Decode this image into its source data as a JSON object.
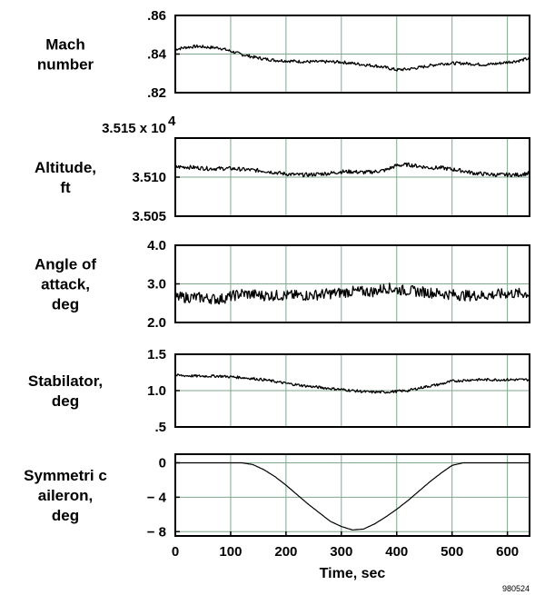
{
  "figure_id": "980524",
  "x_axis": {
    "label": "Time, sec",
    "range": [
      0,
      640
    ],
    "ticks": [
      0,
      100,
      200,
      300,
      400,
      500,
      600
    ]
  },
  "chart_data": [
    {
      "type": "line",
      "ylabel_lines": [
        "Mach",
        "number"
      ],
      "ylim": [
        0.82,
        0.86
      ],
      "ytick_values": [
        0.82,
        0.84,
        0.86
      ],
      "ytick_labels": [
        ".82",
        ".84",
        ".86"
      ],
      "grid": true,
      "series": [
        {
          "x": [
            0,
            20,
            40,
            60,
            80,
            100,
            120,
            140,
            160,
            180,
            200,
            220,
            240,
            260,
            280,
            300,
            320,
            340,
            360,
            380,
            400,
            420,
            440,
            460,
            480,
            500,
            520,
            540,
            560,
            580,
            600,
            620,
            640
          ],
          "y": [
            0.8425,
            0.8435,
            0.844,
            0.8435,
            0.8432,
            0.8415,
            0.8398,
            0.8385,
            0.8375,
            0.8368,
            0.8365,
            0.8362,
            0.836,
            0.836,
            0.836,
            0.8358,
            0.8352,
            0.8345,
            0.834,
            0.833,
            0.8318,
            0.8322,
            0.833,
            0.834,
            0.835,
            0.8352,
            0.8352,
            0.8348,
            0.8345,
            0.835,
            0.8358,
            0.8365,
            0.8378
          ],
          "noise": 0.0008
        }
      ]
    },
    {
      "type": "line",
      "ylabel_lines": [
        "Altitude,",
        "ft"
      ],
      "multiplier_label": "3.515 x 10",
      "multiplier_exponent": "4",
      "ylim": [
        3.505,
        3.515
      ],
      "ytick_values": [
        3.505,
        3.51
      ],
      "ytick_labels": [
        "3.505",
        "3.510"
      ],
      "grid": true,
      "series": [
        {
          "x": [
            0,
            20,
            40,
            60,
            80,
            100,
            120,
            140,
            160,
            180,
            200,
            220,
            240,
            260,
            280,
            300,
            320,
            340,
            360,
            380,
            400,
            420,
            440,
            460,
            480,
            500,
            520,
            540,
            560,
            580,
            600,
            620,
            640
          ],
          "y": [
            3.5113,
            3.5113,
            3.5112,
            3.5111,
            3.5111,
            3.5111,
            3.511,
            3.5109,
            3.5108,
            3.5106,
            3.5104,
            3.5103,
            3.5103,
            3.5104,
            3.5105,
            3.5107,
            3.5107,
            3.5106,
            3.5107,
            3.5109,
            3.5115,
            3.5116,
            3.5114,
            3.5112,
            3.5112,
            3.511,
            3.5108,
            3.5105,
            3.5104,
            3.5103,
            3.5103,
            3.5103,
            3.5105
          ],
          "noise": 0.00025
        }
      ]
    },
    {
      "type": "line",
      "ylabel_lines": [
        "Angle of",
        "attack,",
        "deg"
      ],
      "ylim": [
        2.0,
        4.0
      ],
      "ytick_values": [
        2.0,
        3.0,
        4.0
      ],
      "ytick_labels": [
        "2.0",
        "3.0",
        "4.0"
      ],
      "grid": true,
      "series": [
        {
          "x": [
            0,
            40,
            80,
            120,
            160,
            200,
            240,
            280,
            320,
            360,
            380,
            400,
            440,
            480,
            520,
            560,
            600,
            640
          ],
          "y": [
            2.65,
            2.65,
            2.6,
            2.75,
            2.7,
            2.7,
            2.7,
            2.75,
            2.8,
            2.8,
            2.9,
            2.85,
            2.8,
            2.75,
            2.7,
            2.7,
            2.75,
            2.75
          ],
          "noise": 0.14
        }
      ]
    },
    {
      "type": "line",
      "ylabel_lines": [
        "Stabilator,",
        "deg"
      ],
      "ylim": [
        0.5,
        1.5
      ],
      "ytick_values": [
        0.5,
        1.0,
        1.5
      ],
      "ytick_labels": [
        ".5",
        "1.0",
        "1.5"
      ],
      "grid": true,
      "series": [
        {
          "x": [
            0,
            40,
            80,
            120,
            160,
            200,
            240,
            280,
            320,
            350,
            380,
            420,
            450,
            480,
            500,
            540,
            580,
            620,
            640
          ],
          "y": [
            1.21,
            1.2,
            1.2,
            1.18,
            1.15,
            1.1,
            1.06,
            1.03,
            1.0,
            0.98,
            0.98,
            1.0,
            1.05,
            1.09,
            1.13,
            1.15,
            1.15,
            1.15,
            1.15
          ],
          "noise": 0.018
        }
      ]
    },
    {
      "type": "line",
      "ylabel_lines": [
        "Symmetri c",
        "aileron,",
        "deg"
      ],
      "ylim": [
        -8.5,
        1.0
      ],
      "ytick_values": [
        0,
        -4,
        -8
      ],
      "ytick_labels": [
        "0",
        "− 4",
        "− 8"
      ],
      "grid": true,
      "series": [
        {
          "x": [
            0,
            20,
            40,
            60,
            80,
            100,
            120,
            140,
            160,
            180,
            200,
            220,
            240,
            260,
            280,
            300,
            320,
            340,
            360,
            380,
            400,
            420,
            440,
            460,
            480,
            500,
            520,
            540,
            560,
            580,
            600,
            620,
            640
          ],
          "y": [
            0,
            0,
            0,
            0,
            0,
            0,
            0,
            -0.2,
            -0.8,
            -1.6,
            -2.6,
            -3.7,
            -4.8,
            -5.8,
            -6.8,
            -7.4,
            -7.8,
            -7.7,
            -7.1,
            -6.3,
            -5.4,
            -4.4,
            -3.3,
            -2.2,
            -1.2,
            -0.3,
            0,
            0,
            0,
            0,
            0,
            0,
            0
          ],
          "noise": 0
        }
      ]
    }
  ]
}
